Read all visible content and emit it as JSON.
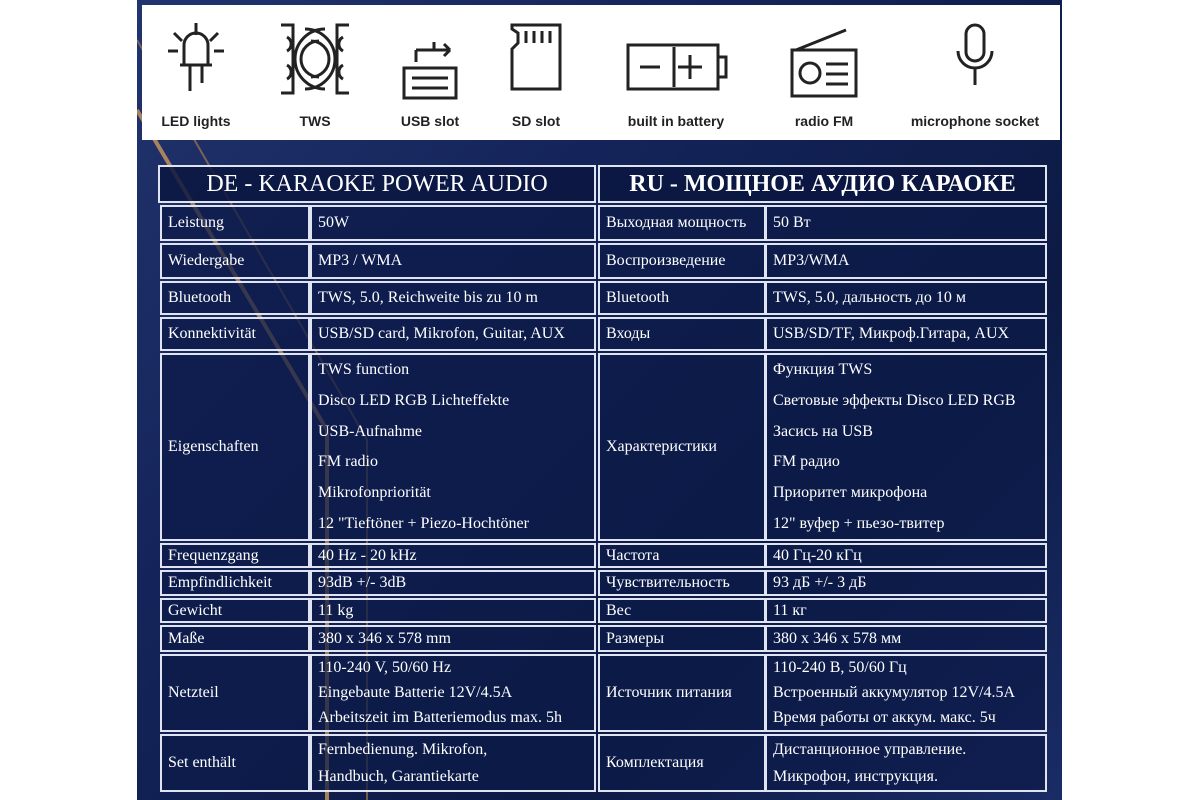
{
  "features": [
    "LED lights",
    "TWS",
    "USB slot",
    "SD slot",
    "built in battery",
    "radio FM",
    "microphone socket"
  ],
  "table": {
    "de_title": "DE - KARAOKE POWER AUDIO",
    "ru_title": "RU - МОЩНОЕ АУДИО КАРАОКЕ",
    "rows": [
      {
        "de_label": "Leistung",
        "de_lines": [
          "50W"
        ],
        "ru_label": "Выходная мощность",
        "ru_lines": [
          "50 Вт"
        ]
      },
      {
        "de_label": "Wiedergabe",
        "de_lines": [
          "MP3 / WMA"
        ],
        "ru_label": "Воспроизведение",
        "ru_lines": [
          "MP3/WMA"
        ]
      },
      {
        "de_label": "Bluetooth",
        "de_lines": [
          "TWS, 5.0, Reichweite bis zu 10 m"
        ],
        "ru_label": "Bluetooth",
        "ru_lines": [
          "TWS, 5.0, дальность до 10 м"
        ]
      },
      {
        "de_label": "Konnektivität",
        "de_lines": [
          "USB/SD card, Mikrofon,  Guitar, AUX"
        ],
        "ru_label": "Входы",
        "ru_lines": [
          "USB/SD/TF, Микроф.Гитара, AUX"
        ]
      },
      {
        "de_label": "Eigenschaften",
        "de_lines": [
          "TWS function",
          "Disco LED RGB Lichteffekte",
          "USB-Aufnahme",
          "FM radio",
          "Mikrofonpriorität",
          "12 \"Tieftöner + Piezo-Hochtöner"
        ],
        "ru_label": "Характеристики",
        "ru_lines": [
          "Функция TWS",
          "Световые эффекты Disco LED RGB",
          "Засись на USB",
          "FM радио",
          "Приоритет микрофона",
          "12\" вуфер + пьезо-твитер"
        ]
      },
      {
        "de_label": "Frequenzgang",
        "de_lines": [
          "40 Hz - 20 kHz"
        ],
        "ru_label": "Частота",
        "ru_lines": [
          "40 Гц-20 кГц"
        ]
      },
      {
        "de_label": "Empfindlichkeit",
        "de_lines": [
          "93dB +/- 3dB"
        ],
        "ru_label": "Чувствительность",
        "ru_lines": [
          "93 дБ +/- 3 дБ"
        ]
      },
      {
        "de_label": "Gewicht",
        "de_lines": [
          "11 kg"
        ],
        "ru_label": "Вес",
        "ru_lines": [
          "11 кг"
        ]
      },
      {
        "de_label": "Maße",
        "de_lines": [
          "380 x 346 x 578 mm"
        ],
        "ru_label": "Размеры",
        "ru_lines": [
          "380 x 346 x 578 мм"
        ]
      },
      {
        "de_label": "Netzteil",
        "de_lines": [
          "110-240 V, 50/60 Hz",
          "Eingebaute Batterie 12V/4.5A",
          "Arbeitszeit im Batteriemodus max. 5h"
        ],
        "ru_label": "Источник питания",
        "ru_lines": [
          "110-240 В, 50/60 Гц",
          "Встроенный аккумулятор 12V/4.5A",
          "Время работы от аккум. макс. 5ч"
        ]
      },
      {
        "de_label": "Set enthält",
        "de_lines": [
          "Fernbedienung. Mikrofon,",
          "Handbuch, Garantiekarte"
        ],
        "ru_label": "Комплектация",
        "ru_lines": [
          "Дистанционное управление.",
          "Микрофон, инструкция."
        ]
      }
    ]
  }
}
